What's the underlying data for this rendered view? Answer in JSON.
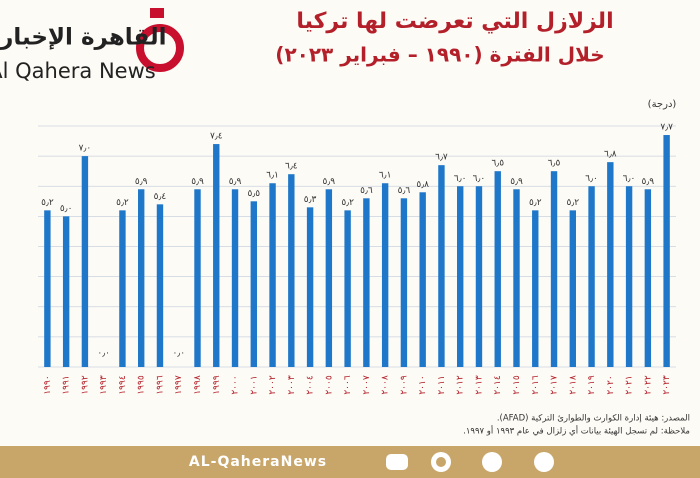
{
  "logo": {
    "arabic": "القاهرة الإخبارية",
    "english": "Al Qahera News"
  },
  "footer": "AL-QaheraNews",
  "chart_data": {
    "type": "bar",
    "title": "الزلازل التي تعرضت لها تركيا",
    "subtitle": "خلال الفترة (١٩٩٠ – فبراير ٢٠٢٣)",
    "y_label": "(درجة)",
    "categories": [
      "١٩٩٠",
      "١٩٩١",
      "١٩٩٢",
      "١٩٩٣",
      "١٩٩٤",
      "١٩٩٥",
      "١٩٩٦",
      "١٩٩٧",
      "١٩٩٨",
      "١٩٩٩",
      "٢٠٠٠",
      "٢٠٠١",
      "٢٠٠٢",
      "٢٠٠٣",
      "٢٠٠٤",
      "٢٠٠٥",
      "٢٠٠٦",
      "٢٠٠٧",
      "٢٠٠٨",
      "٢٠٠٩",
      "٢٠١٠",
      "٢٠١١",
      "٢٠١٢",
      "٢٠١٣",
      "٢٠١٤",
      "٢٠١٥",
      "٢٠١٦",
      "٢٠١٧",
      "٢٠١٨",
      "٢٠١٩",
      "٢٠٢٠",
      "٢٠٢١",
      "٢٠٢٢",
      "٢٠٢٣"
    ],
    "values": [
      5.2,
      5.0,
      7.0,
      0.0,
      5.2,
      5.9,
      5.4,
      0.0,
      5.9,
      7.4,
      5.9,
      5.5,
      6.1,
      6.4,
      5.3,
      5.9,
      5.2,
      5.6,
      6.1,
      5.6,
      5.8,
      6.7,
      6.0,
      6.0,
      6.5,
      5.9,
      5.2,
      6.5,
      5.2,
      6.0,
      6.8,
      6.0,
      5.9,
      7.7
    ],
    "value_labels": [
      "٥٫٢",
      "٥٫٠",
      "٧٫٠",
      "٠٫٠",
      "٥٫٢",
      "٥٫٩",
      "٥٫٤",
      "٠٫٠",
      "٥٫٩",
      "٧٫٤",
      "٥٫٩",
      "٥٫٥",
      "٦٫١",
      "٦٫٤",
      "٥٫٣",
      "٥٫٩",
      "٥٫٢",
      "٥٫٦",
      "٦٫١",
      "٥٫٦",
      "٥٫٨",
      "٦٫٧",
      "٦٫٠",
      "٦٫٠",
      "٦٫٥",
      "٥٫٩",
      "٥٫٢",
      "٦٫٥",
      "٥٫٢",
      "٦٫٠",
      "٦٫٨",
      "٦٫٠",
      "٥٫٩",
      "٧٫٧"
    ],
    "color": "#1f77c9",
    "ylim": [
      0,
      8
    ],
    "yticks": [
      0,
      1,
      2,
      3,
      4,
      5,
      6,
      7,
      8
    ],
    "grid": true,
    "source": "المصدر: هيئة إدارة الكوارث والطوارئ التركية (AFAD).",
    "note": "ملاحظة: لم تسجل الهيئة بيانات أي زلزال في عام ١٩٩٣ أو ١٩٩٧."
  }
}
